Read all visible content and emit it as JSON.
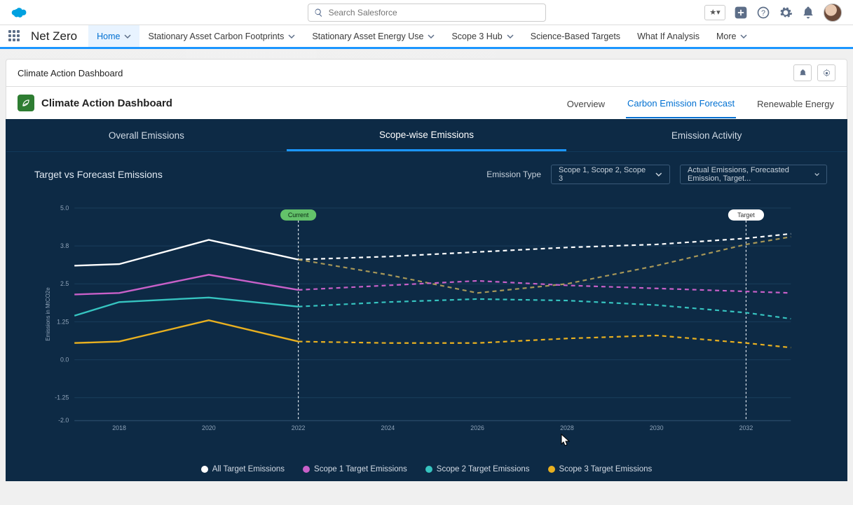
{
  "header": {
    "search_placeholder": "Search Salesforce",
    "right_icons": [
      "favorite",
      "add",
      "help",
      "setup",
      "notifications",
      "avatar"
    ]
  },
  "nav": {
    "app_name": "Net Zero",
    "tabs": [
      {
        "label": "Home",
        "active": true,
        "menu": true
      },
      {
        "label": "Stationary Asset Carbon Footprints",
        "active": false,
        "menu": true
      },
      {
        "label": "Stationary Asset Energy Use",
        "active": false,
        "menu": true
      },
      {
        "label": "Scope 3  Hub",
        "active": false,
        "menu": true
      },
      {
        "label": "Science-Based Targets",
        "active": false,
        "menu": false
      },
      {
        "label": "What If Analysis",
        "active": false,
        "menu": false
      },
      {
        "label": "More",
        "active": false,
        "menu": true
      }
    ]
  },
  "page": {
    "breadcrumb_title": "Climate Action Dashboard",
    "dashboard_title": "Climate Action Dashboard",
    "dash_tabs": [
      {
        "label": "Overview",
        "active": false
      },
      {
        "label": "Carbon Emission Forecast",
        "active": true
      },
      {
        "label": "Renewable Energy",
        "active": false
      }
    ]
  },
  "dark_panel": {
    "sub_tabs": [
      {
        "label": "Overall Emissions",
        "active": false
      },
      {
        "label": "Scope-wise Emissions",
        "active": true
      },
      {
        "label": "Emission Activity",
        "active": false
      }
    ],
    "section_title": "Target vs Forecast Emissions",
    "emission_type_label": "Emission Type",
    "emission_type_value": "Scope 1, Scope 2, Scope 3",
    "series_selector_value": "Actual Emissions, Forecasted Emission, Target..."
  },
  "chart": {
    "type": "line",
    "background_color": "#0d2a45",
    "grid_color": "#1a3e5c",
    "axis_label": "Emissions in MtCO2e",
    "y_ticks": [
      -2.0,
      -1.25,
      0,
      1.25,
      2.5,
      3.75,
      5.0
    ],
    "ylim": [
      -2.0,
      5.0
    ],
    "x_ticks": [
      2018,
      2020,
      2022,
      2024,
      2026,
      2028,
      2030,
      2032
    ],
    "xlim": [
      2017,
      2033
    ],
    "markers": [
      {
        "x": 2022,
        "label": "Current",
        "bg": "#63c26a",
        "text": "#0a2a12"
      },
      {
        "x": 2032,
        "label": "Target",
        "bg": "#ffffff",
        "text": "#333333"
      }
    ],
    "series": [
      {
        "name": "All Target Emissions",
        "color": "#ffffff",
        "actual_x": [
          2017,
          2018,
          2020,
          2022
        ],
        "actual_y": [
          3.1,
          3.15,
          3.95,
          3.3
        ],
        "forecast_x": [
          2022,
          2024,
          2026,
          2028,
          2030,
          2032,
          2033
        ],
        "forecast_y": [
          3.3,
          3.4,
          3.55,
          3.7,
          3.8,
          4.0,
          4.15
        ],
        "target_x": [
          2022,
          2024,
          2026,
          2028,
          2030,
          2032,
          2033
        ],
        "target_y": [
          3.3,
          2.8,
          2.2,
          2.5,
          3.1,
          3.8,
          4.05
        ]
      },
      {
        "name": "Scope 1 Target Emissions",
        "color": "#c860c8",
        "actual_x": [
          2017,
          2018,
          2020,
          2022
        ],
        "actual_y": [
          2.15,
          2.2,
          2.8,
          2.3
        ],
        "forecast_x": [
          2022,
          2024,
          2026,
          2028,
          2030,
          2032,
          2033
        ],
        "forecast_y": [
          2.3,
          2.45,
          2.6,
          2.45,
          2.35,
          2.25,
          2.2
        ],
        "target_x": [],
        "target_y": []
      },
      {
        "name": "Scope 2 Target Emissions",
        "color": "#36c4c0",
        "actual_x": [
          2017,
          2018,
          2020,
          2022
        ],
        "actual_y": [
          1.45,
          1.9,
          2.05,
          1.75
        ],
        "forecast_x": [
          2022,
          2024,
          2026,
          2028,
          2030,
          2032,
          2033
        ],
        "forecast_y": [
          1.75,
          1.9,
          2.0,
          1.95,
          1.8,
          1.55,
          1.35
        ],
        "target_x": [],
        "target_y": []
      },
      {
        "name": "Scope 3 Target Emissions",
        "color": "#e8b020",
        "actual_x": [
          2017,
          2018,
          2020,
          2022
        ],
        "actual_y": [
          0.55,
          0.6,
          1.3,
          0.6
        ],
        "forecast_x": [
          2022,
          2024,
          2026,
          2028,
          2030,
          2032,
          2033
        ],
        "forecast_y": [
          0.6,
          0.55,
          0.55,
          0.7,
          0.8,
          0.55,
          0.4
        ],
        "target_x": [],
        "target_y": []
      }
    ],
    "legend": [
      {
        "color": "#ffffff",
        "label": "All Target Emissions"
      },
      {
        "color": "#c860c8",
        "label": "Scope 1 Target Emissions"
      },
      {
        "color": "#36c4c0",
        "label": "Scope 2 Target Emissions"
      },
      {
        "color": "#e8b020",
        "label": "Scope 3 Target Emissions"
      }
    ],
    "line_width_actual": 2.4,
    "line_width_forecast": 2.2,
    "dash_pattern": "6 5"
  }
}
